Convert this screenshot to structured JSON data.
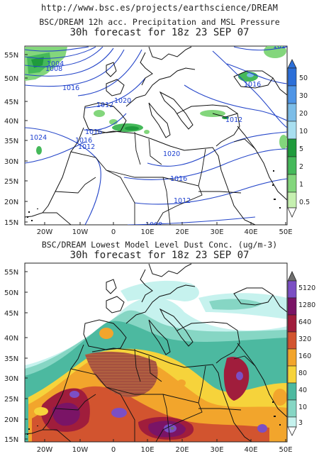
{
  "url": "http://www.bsc.es/projects/earthscience/DREAM",
  "precip": {
    "title": "BSC/DREAM 12h acc. Precipitation and MSL Pressure",
    "subtitle": "30h forecast for 18z 23 SEP 07",
    "lat_labels": [
      "55N",
      "50N",
      "45N",
      "40N",
      "35N",
      "30N",
      "25N",
      "20N",
      "15N"
    ],
    "lon_labels": [
      "20W",
      "10W",
      "0",
      "10E",
      "20E",
      "30E",
      "40E",
      "50E"
    ],
    "isobars": [
      "1004",
      "1008",
      "1016",
      "1020",
      "1012",
      "1016",
      "1024",
      "1016",
      "1012",
      "1020",
      "1016",
      "1012",
      "1008",
      "1024",
      "1016",
      "1012"
    ],
    "colorbar": {
      "labels": [
        "50",
        "30",
        "20",
        "10",
        "5",
        "2",
        "1",
        "0.5"
      ],
      "colors": [
        "#2c6fd8",
        "#4f95e6",
        "#7cbde8",
        "#a9dff0",
        "#1f9b3c",
        "#45b95a",
        "#83d67c",
        "#c6f0b0"
      ]
    }
  },
  "dust": {
    "title": "BSC/DREAM Lowest Model Level Dust Conc. (ug/m-3)",
    "subtitle": "30h forecast for 18z 23 SEP 07",
    "lat_labels": [
      "55N",
      "50N",
      "45N",
      "40N",
      "35N",
      "30N",
      "25N",
      "20N",
      "15N"
    ],
    "lon_labels": [
      "20W",
      "10W",
      "0",
      "10E",
      "20E",
      "30E",
      "40E",
      "50E"
    ],
    "colorbar": {
      "labels": [
        "5120",
        "1280",
        "640",
        "320",
        "160",
        "80",
        "40",
        "10",
        "3"
      ],
      "colors": [
        "#6f6f6f",
        "#7b4fc4",
        "#7a1466",
        "#a01d3c",
        "#d2542f",
        "#f2a52c",
        "#f6d33b",
        "#4cb9a0",
        "#86d6c4",
        "#c6f2ee"
      ]
    }
  }
}
